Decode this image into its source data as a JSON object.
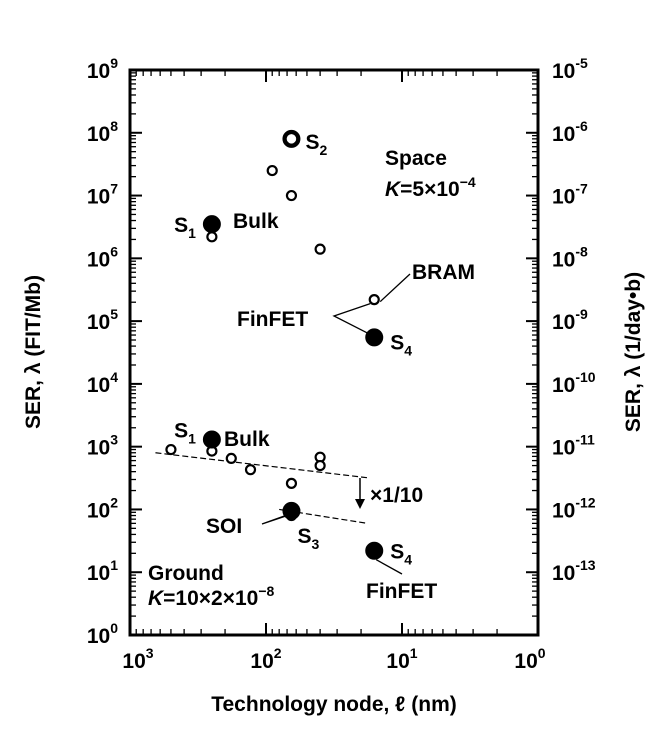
{
  "chart_data": {
    "type": "scatter",
    "title": "",
    "xlabel": "Technology node, ℓ (nm)",
    "ylabel": "SER, λ (FIT/Mb)",
    "y2label": "SER, λ (1/day•b)",
    "x_scale": "log",
    "x_reversed": true,
    "y_scale": "log",
    "xlim": [
      1000,
      1
    ],
    "ylim": [
      1,
      1000000000
    ],
    "y2lim": [
      1e-14,
      1e-05
    ],
    "grid": false,
    "x_ticks": [
      {
        "value": 1000,
        "base": "10",
        "exp": "3"
      },
      {
        "value": 100,
        "base": "10",
        "exp": "2"
      },
      {
        "value": 10,
        "base": "10",
        "exp": "1"
      },
      {
        "value": 1,
        "base": "10",
        "exp": "0"
      }
    ],
    "y_ticks": [
      {
        "value": 1,
        "base": "10",
        "exp": "0"
      },
      {
        "value": 10,
        "base": "10",
        "exp": "1"
      },
      {
        "value": 100,
        "base": "10",
        "exp": "2"
      },
      {
        "value": 1000,
        "base": "10",
        "exp": "3"
      },
      {
        "value": 10000,
        "base": "10",
        "exp": "4"
      },
      {
        "value": 100000,
        "base": "10",
        "exp": "5"
      },
      {
        "value": 1000000,
        "base": "10",
        "exp": "6"
      },
      {
        "value": 10000000,
        "base": "10",
        "exp": "7"
      },
      {
        "value": 100000000,
        "base": "10",
        "exp": "8"
      },
      {
        "value": 1000000000,
        "base": "10",
        "exp": "9"
      }
    ],
    "y2_ticks": [
      {
        "value": 1e-13,
        "base": "10",
        "exp": "-13"
      },
      {
        "value": 1e-12,
        "base": "10",
        "exp": "-12"
      },
      {
        "value": 1e-11,
        "base": "10",
        "exp": "-11"
      },
      {
        "value": 1e-10,
        "base": "10",
        "exp": "-10"
      },
      {
        "value": 1e-09,
        "base": "10",
        "exp": "-9"
      },
      {
        "value": 1e-08,
        "base": "10",
        "exp": "-8"
      },
      {
        "value": 1e-07,
        "base": "10",
        "exp": "-7"
      },
      {
        "value": 1e-06,
        "base": "10",
        "exp": "-6"
      },
      {
        "value": 1e-05,
        "base": "10",
        "exp": "-5"
      }
    ],
    "series": [
      {
        "marker": "open-circle",
        "points": [
          {
            "x": 65,
            "y": 80000000
          },
          {
            "x": 90,
            "y": 25000000
          },
          {
            "x": 65,
            "y": 10000000
          },
          {
            "x": 250,
            "y": 2200000
          },
          {
            "x": 40,
            "y": 1400000
          },
          {
            "x": 16,
            "y": 220000
          },
          {
            "x": 500,
            "y": 900
          },
          {
            "x": 250,
            "y": 850
          },
          {
            "x": 180,
            "y": 650
          },
          {
            "x": 130,
            "y": 430
          },
          {
            "x": 40,
            "y": 680
          },
          {
            "x": 40,
            "y": 500
          },
          {
            "x": 65,
            "y": 260
          },
          {
            "x": 65,
            "y": 80
          }
        ]
      },
      {
        "marker": "filled-circle",
        "points": [
          {
            "x": 65,
            "y": 80000000,
            "label": "S",
            "sub": "2"
          },
          {
            "x": 250,
            "y": 3500000,
            "label": "S",
            "sub": "1"
          },
          {
            "x": 16,
            "y": 55000,
            "label": "S",
            "sub": "4"
          },
          {
            "x": 250,
            "y": 1300,
            "label": "S",
            "sub": "1"
          },
          {
            "x": 65,
            "y": 95,
            "label": "S",
            "sub": "3"
          },
          {
            "x": 16,
            "y": 22,
            "label": "S",
            "sub": "4"
          }
        ]
      }
    ],
    "trend_lines": [
      {
        "x1": 650,
        "y1": 800,
        "x2": 18,
        "y2": 320
      },
      {
        "x1": 80,
        "y1": 100,
        "x2": 18,
        "y2": 60
      }
    ],
    "annotations": {
      "space": "Space",
      "space_k_var": "K",
      "space_k_val": "=5×10",
      "space_k_exp": "−4",
      "bulk_space": "Bulk",
      "bram": "BRAM",
      "finfet_space": "FinFET",
      "bulk_ground": "Bulk",
      "reduction": "×1/10",
      "soi": "SOI",
      "ground": "Ground",
      "ground_k_var": "K",
      "ground_k_val": "=10×2×10",
      "ground_k_exp": "−8",
      "finfet_ground": "FinFET"
    }
  }
}
